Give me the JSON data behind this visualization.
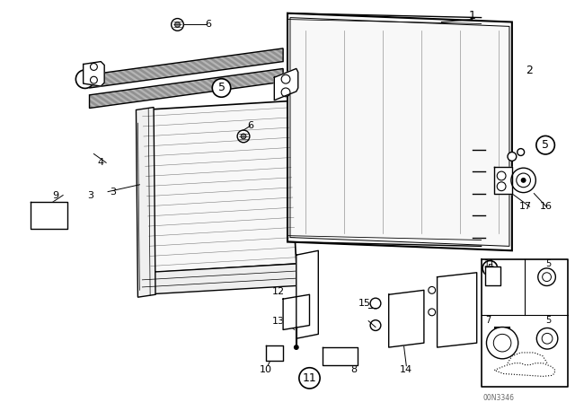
{
  "bg_color": "#ffffff",
  "line_color": "#000000",
  "gray": "#888888",
  "image_id": "00N3346"
}
